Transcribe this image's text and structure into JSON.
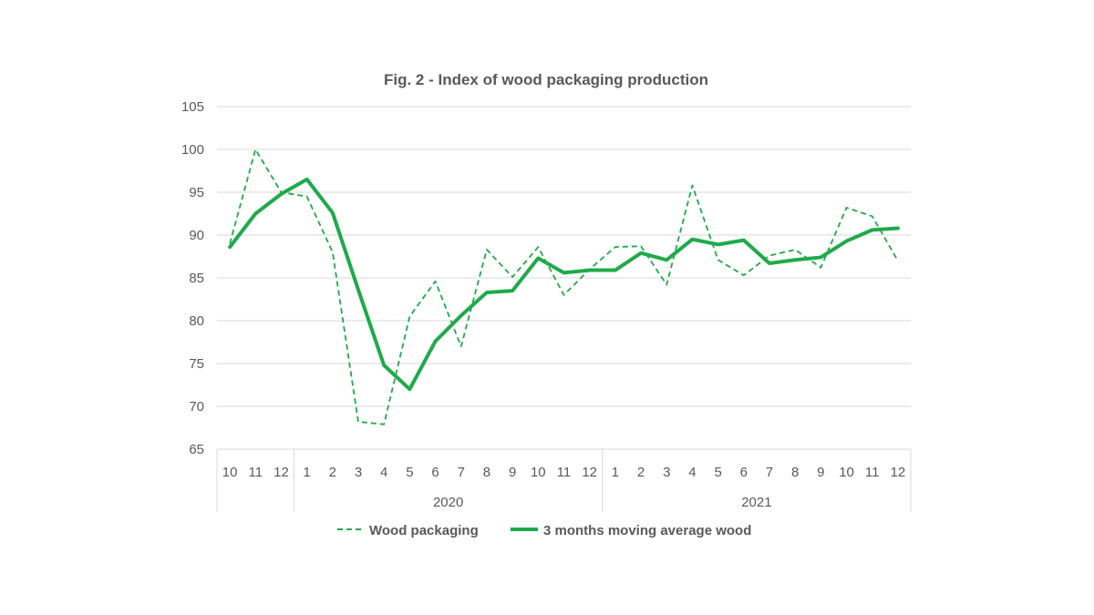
{
  "chart_data": {
    "type": "line",
    "title": "Fig. 2 - Index of wood packaging production",
    "xlabel": "",
    "ylabel": "",
    "ylim": [
      65,
      105
    ],
    "yticks": [
      65,
      70,
      75,
      80,
      85,
      90,
      95,
      100,
      105
    ],
    "grid": true,
    "legend_position": "bottom",
    "categories": [
      "10",
      "11",
      "12",
      "1",
      "2",
      "3",
      "4",
      "5",
      "6",
      "7",
      "8",
      "9",
      "10",
      "11",
      "12",
      "1",
      "2",
      "3",
      "4",
      "5",
      "6",
      "7",
      "8",
      "9",
      "10",
      "11",
      "12"
    ],
    "year_groups": [
      {
        "label": "",
        "start": 0,
        "end": 2
      },
      {
        "label": "2020",
        "start": 3,
        "end": 14
      },
      {
        "label": "2021",
        "start": 15,
        "end": 26
      }
    ],
    "series": [
      {
        "name": "Wood packaging",
        "style": "dashed",
        "color": "#1faa4a",
        "values": [
          89.0,
          100.0,
          95.0,
          94.5,
          88.0,
          68.2,
          67.9,
          80.5,
          84.6,
          77.0,
          88.3,
          85.1,
          88.6,
          83.0,
          86.0,
          88.6,
          88.7,
          84.2,
          95.8,
          87.1,
          85.3,
          87.6,
          88.3,
          86.2,
          93.2,
          92.2,
          87.0
        ]
      },
      {
        "name": "3 months moving average wood",
        "style": "solid",
        "color": "#1faa4a",
        "values": [
          88.6,
          92.5,
          94.8,
          96.5,
          92.6,
          83.6,
          74.8,
          72.0,
          77.6,
          80.6,
          83.3,
          83.5,
          87.3,
          85.6,
          85.9,
          85.9,
          87.9,
          87.1,
          89.5,
          88.9,
          89.4,
          86.7,
          87.1,
          87.4,
          89.3,
          90.6,
          90.8
        ]
      }
    ]
  }
}
